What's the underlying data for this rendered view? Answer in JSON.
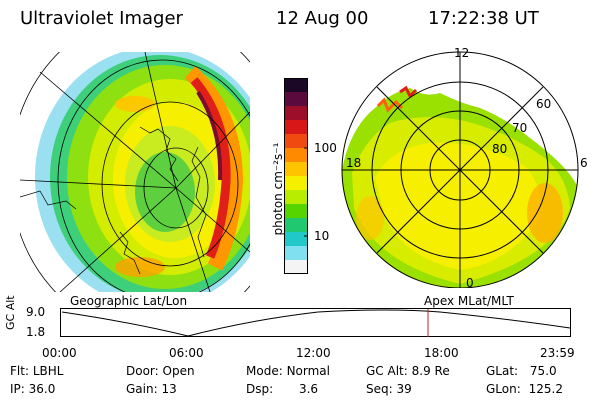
{
  "header": {
    "instrument": "Ultraviolet Imager",
    "date": "12 Aug 00",
    "time": "17:22:38 UT"
  },
  "colorbar": {
    "unit_label": "photon cm⁻²s⁻¹",
    "ticks": [
      "100",
      "10"
    ],
    "colors": [
      "#1a0826",
      "#5a0a3c",
      "#9c0e2a",
      "#d81818",
      "#f04a10",
      "#ff8a00",
      "#ffc400",
      "#f4f000",
      "#b8ec00",
      "#56d400",
      "#20c870",
      "#20c8c8",
      "#80e0f0",
      "#f4f4f4"
    ]
  },
  "panels": {
    "left_label": "Geographic Lat/Lon",
    "right_label": "Apex MLat/MLT",
    "polar": {
      "clock_labels": {
        "top": "12",
        "left": "18",
        "right": "6",
        "bottom": "0"
      },
      "lat_labels": [
        "60",
        "70",
        "80"
      ]
    }
  },
  "timeline": {
    "y_title": "GC Alt",
    "y_top": "9.0",
    "y_bottom": "1.8",
    "x_ticks": [
      "00:00",
      "06:00",
      "12:00",
      "18:00",
      "23:59"
    ],
    "marker_time": "17:22",
    "marker_color": "#c02020"
  },
  "info": {
    "flt_label": "Flt:",
    "flt_value": "LBHL",
    "ip_label": "IP:",
    "ip_value": "36.0",
    "door_label": "Door:",
    "door_value": "Open",
    "gain_label": "Gain:",
    "gain_value": "13",
    "mode_label": "Mode:",
    "mode_value": "Normal",
    "dsp_label": "Dsp:",
    "dsp_value": "3.6",
    "gcalt_label": "GC Alt:",
    "gcalt_value": "8.9 Re",
    "seq_label": "Seq:",
    "seq_value": "39",
    "glat_label": "GLat:",
    "glat_value": "75.0",
    "glon_label": "GLon:",
    "glon_value": "125.2"
  }
}
